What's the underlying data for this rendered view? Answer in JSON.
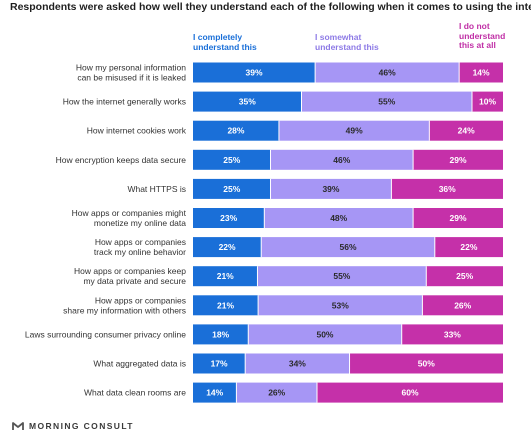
{
  "chart_data": {
    "type": "bar",
    "stacked": true,
    "orientation": "horizontal",
    "title": "Respondents were asked how well they understand each of the following when it comes to using the internet:",
    "categories": [
      [
        "How my personal information",
        "can be misused if it is leaked"
      ],
      [
        "How the internet generally works"
      ],
      [
        "How internet cookies work"
      ],
      [
        "How encryption keeps data secure"
      ],
      [
        "What HTTPS is"
      ],
      [
        "How apps or companies might",
        "monetize my online data"
      ],
      [
        "How apps or companies",
        "track my online behavior"
      ],
      [
        "How apps or companies keep",
        "my data private and secure"
      ],
      [
        "How apps or companies",
        "share my information with others"
      ],
      [
        "Laws surrounding consumer privacy online"
      ],
      [
        "What aggregated data is"
      ],
      [
        "What data clean rooms are"
      ]
    ],
    "series": [
      {
        "name": [
          "I completely",
          "understand this"
        ],
        "color": "#1a6fd8",
        "values": [
          39,
          35,
          28,
          25,
          25,
          23,
          22,
          21,
          21,
          18,
          17,
          14
        ]
      },
      {
        "name": [
          "I somewhat",
          "understand this"
        ],
        "color": "#a696f5",
        "values": [
          46,
          55,
          49,
          46,
          39,
          48,
          56,
          55,
          53,
          50,
          34,
          26
        ]
      },
      {
        "name": [
          "I do not",
          "understand",
          "this at all"
        ],
        "color": "#c530a9",
        "values": [
          14,
          10,
          24,
          29,
          36,
          29,
          22,
          25,
          26,
          33,
          50,
          60
        ]
      }
    ],
    "value_suffix": "%",
    "legend_position": "top"
  },
  "brand": {
    "name": "MORNING CONSULT",
    "logo_icon": "morning-consult-logo-icon"
  }
}
